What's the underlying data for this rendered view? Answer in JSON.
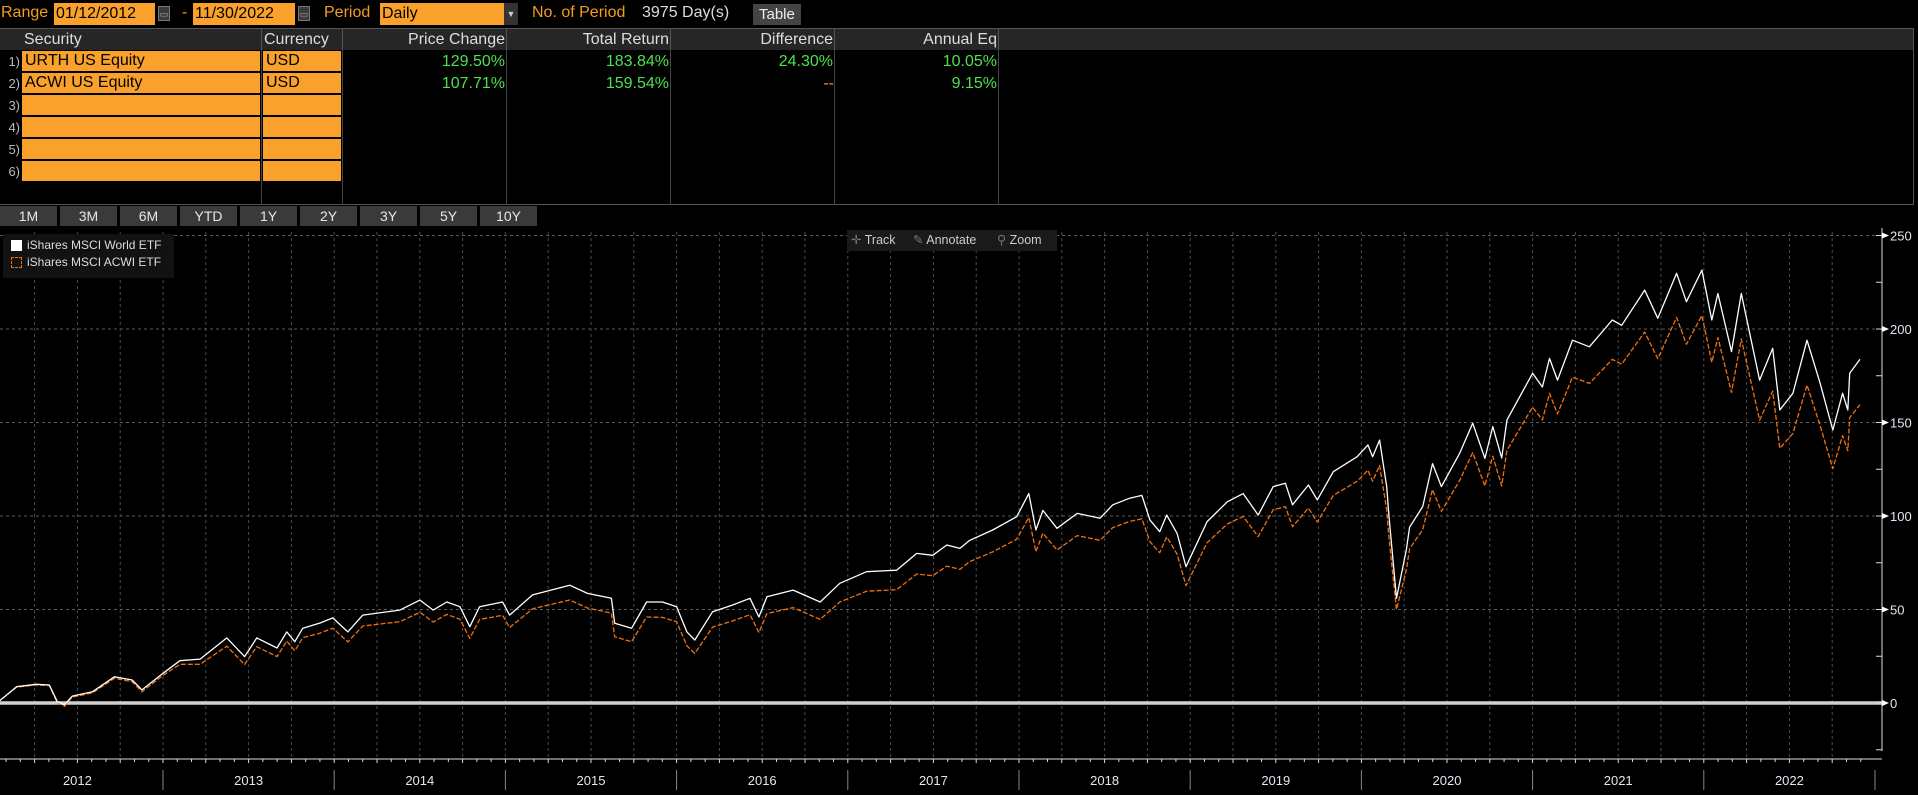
{
  "toolbar": {
    "range_label": "Range",
    "start_date": "01/12/2012",
    "dash": "-",
    "end_date": "11/30/2022",
    "period_label": "Period",
    "period_value": "Daily",
    "num_period_label": "No. of Period",
    "num_period_value": "3975 Day(s)",
    "table_button": "Table"
  },
  "table": {
    "headers": [
      "Security",
      "Currency",
      "Price Change",
      "Total Return",
      "Difference",
      "Annual Eq"
    ],
    "rows": [
      {
        "num": "1)",
        "security": "URTH US Equity",
        "currency": "USD",
        "price_change": "129.50%",
        "total_return": "183.84%",
        "difference": "24.30%",
        "annual_eq": "10.05%"
      },
      {
        "num": "2)",
        "security": "ACWI US Equity",
        "currency": "USD",
        "price_change": "107.71%",
        "total_return": "159.54%",
        "difference": "--",
        "annual_eq": "9.15%"
      },
      {
        "num": "3)",
        "security": "",
        "currency": ""
      },
      {
        "num": "4)",
        "security": "",
        "currency": ""
      },
      {
        "num": "5)",
        "security": "",
        "currency": ""
      },
      {
        "num": "6)",
        "security": "",
        "currency": ""
      }
    ]
  },
  "period_buttons": [
    "1M",
    "3M",
    "6M",
    "YTD",
    "1Y",
    "2Y",
    "3Y",
    "5Y",
    "10Y"
  ],
  "chart_tools": {
    "track": "Track",
    "annotate": "Annotate",
    "zoom": "Zoom",
    "track_icon": "crosshair-icon",
    "annotate_icon": "pencil-icon",
    "zoom_icon": "magnifier-icon"
  },
  "colors": {
    "accent": "#f9a12a",
    "positive": "#4fe04f",
    "series_1": "#ffffff",
    "series_2": "#f07010",
    "background": "#000000"
  },
  "chart_data": {
    "type": "line",
    "legend_placement": "top-left",
    "grid": true,
    "ylim": [
      -25,
      250
    ],
    "y_ticks": [
      0,
      50,
      100,
      150,
      200,
      250
    ],
    "x_ticks": [
      "2012",
      "2013",
      "2014",
      "2015",
      "2016",
      "2017",
      "2018",
      "2019",
      "2020",
      "2021",
      "2022"
    ],
    "x_range": [
      "2012-01-12",
      "2022-11-30"
    ],
    "baseline": 0,
    "dates": [
      "2012-01-12",
      "2012-02-23",
      "2012-04-05",
      "2012-05-03",
      "2012-05-20",
      "2012-06-04",
      "2012-06-21",
      "2012-08-03",
      "2012-09-19",
      "2012-10-27",
      "2012-11-17",
      "2013-01-01",
      "2013-02-06",
      "2013-03-21",
      "2013-05-17",
      "2013-06-24",
      "2013-07-20",
      "2013-09-01",
      "2013-09-22",
      "2013-10-09",
      "2013-10-26",
      "2013-12-02",
      "2013-12-29",
      "2014-01-30",
      "2014-03-03",
      "2014-05-21",
      "2014-07-03",
      "2014-07-31",
      "2014-08-29",
      "2014-09-26",
      "2014-10-17",
      "2014-11-07",
      "2014-12-26",
      "2015-01-10",
      "2015-02-28",
      "2015-05-18",
      "2015-06-25",
      "2015-08-15",
      "2015-08-22",
      "2015-09-27",
      "2015-10-29",
      "2015-12-02",
      "2016-01-01",
      "2016-01-23",
      "2016-02-09",
      "2016-03-18",
      "2016-04-30",
      "2016-06-06",
      "2016-06-25",
      "2016-07-12",
      "2016-09-06",
      "2016-11-03",
      "2016-12-15",
      "2017-02-10",
      "2017-04-15",
      "2017-05-28",
      "2017-07-01",
      "2017-07-31",
      "2017-08-28",
      "2017-09-18",
      "2017-11-06",
      "2017-12-27",
      "2018-01-22",
      "2018-02-06",
      "2018-02-21",
      "2018-03-23",
      "2018-05-05",
      "2018-06-23",
      "2018-07-20",
      "2018-08-25",
      "2018-09-20",
      "2018-10-07",
      "2018-10-28",
      "2018-11-12",
      "2018-12-04",
      "2018-12-23",
      "2019-02-06",
      "2019-03-21",
      "2019-04-24",
      "2019-05-26",
      "2019-06-27",
      "2019-07-23",
      "2019-08-07",
      "2019-09-10",
      "2019-09-29",
      "2019-11-02",
      "2019-12-23",
      "2020-01-15",
      "2020-01-25",
      "2020-02-09",
      "2020-02-24",
      "2020-02-29",
      "2020-03-16",
      "2020-04-06",
      "2020-04-13",
      "2020-05-11",
      "2020-06-01",
      "2020-06-20",
      "2020-07-29",
      "2020-08-26",
      "2020-09-21",
      "2020-10-08",
      "2020-10-27",
      "2020-11-07",
      "2021-01-01",
      "2021-01-22",
      "2021-02-06",
      "2021-02-23",
      "2021-03-27",
      "2021-05-02",
      "2021-06-20",
      "2021-07-10",
      "2021-08-28",
      "2021-09-25",
      "2021-11-04",
      "2021-11-25",
      "2021-12-28",
      "2022-01-18",
      "2022-01-31",
      "2022-03-01",
      "2022-03-22",
      "2022-04-30",
      "2022-05-28",
      "2022-06-12",
      "2022-07-10",
      "2022-08-09",
      "2022-09-06",
      "2022-10-03",
      "2022-10-24",
      "2022-11-04",
      "2022-11-08",
      "2022-11-30"
    ],
    "series": [
      {
        "name": "iShares MSCI World ETF",
        "color": "#ffffff",
        "style": "solid",
        "values": [
          0,
          8.7,
          10,
          9.6,
          0.7,
          -1,
          3.7,
          6,
          14,
          12.3,
          7,
          15.9,
          22.6,
          23.5,
          34.8,
          24.8,
          34.8,
          29.4,
          38,
          32.8,
          40,
          42.8,
          45.5,
          38,
          47,
          49.7,
          55,
          49.7,
          54,
          51.5,
          40.8,
          51.5,
          54,
          47,
          57.8,
          63,
          58.6,
          56,
          42.6,
          40,
          54,
          54,
          51.5,
          38,
          33.7,
          48.8,
          52.4,
          56,
          46,
          56.8,
          60.4,
          54,
          64,
          70.2,
          71,
          80,
          79,
          84.5,
          82.7,
          87,
          92.5,
          99.6,
          112,
          92.5,
          103,
          93.4,
          101.4,
          98.8,
          106,
          109.5,
          111,
          97.9,
          91.6,
          100.5,
          90.7,
          72.9,
          97,
          107.6,
          112,
          100.5,
          115.7,
          117.5,
          106,
          116.6,
          108.6,
          123.7,
          131.7,
          138,
          131.7,
          140.6,
          115.7,
          99.6,
          56,
          81.8,
          94,
          105,
          128,
          115.7,
          133.5,
          149.6,
          130.8,
          147.8,
          131,
          151.3,
          176.3,
          169,
          184.3,
          172.7,
          194,
          190.5,
          204.8,
          202,
          220.8,
          205.7,
          229.8,
          214.6,
          231.5,
          204.8,
          219,
          187.9,
          219,
          172.7,
          189.7,
          156.7,
          165.6,
          194,
          171,
          146,
          165.6,
          156.7,
          176.3,
          183.84
        ]
      },
      {
        "name": "iShares MSCI ACWI ETF",
        "color": "#f07010",
        "style": "dashed",
        "values": [
          0,
          8.5,
          9.7,
          9.3,
          0.3,
          -1.8,
          3.2,
          5.4,
          13.2,
          11.4,
          6,
          14.8,
          20.7,
          20.7,
          30.4,
          20.6,
          30.1,
          24.8,
          33.1,
          27.9,
          34.9,
          37.4,
          40,
          32.7,
          41.2,
          43.5,
          48.5,
          43.3,
          47.4,
          44.8,
          34.6,
          44.7,
          46.9,
          40.3,
          50.4,
          55.1,
          50.8,
          48.1,
          35.4,
          32.8,
          46,
          45.8,
          43.5,
          30.6,
          26.5,
          40.6,
          43.9,
          47.2,
          37.7,
          47.8,
          51,
          44.7,
          54,
          59.8,
          60.6,
          69,
          68.1,
          73.2,
          71.5,
          75.6,
          80.8,
          87.6,
          99.2,
          80.9,
          90.8,
          81.8,
          89.5,
          87,
          93.8,
          97.1,
          98.5,
          86.3,
          80.4,
          88.8,
          79.6,
          62.8,
          85.7,
          95.7,
          99.8,
          89,
          103.3,
          105,
          94.3,
          104.3,
          96.8,
          111,
          118.6,
          124.5,
          118.6,
          127,
          103.3,
          88.1,
          50,
          71,
          82.5,
          92.7,
          114.1,
          102.5,
          119,
          133.9,
          116.1,
          132,
          116.1,
          135.1,
          158.2,
          151.4,
          165.5,
          154.6,
          174.3,
          170.9,
          183.8,
          181.2,
          198.4,
          184.1,
          206.2,
          191.8,
          207.2,
          182.2,
          195.4,
          166.1,
          194.6,
          151.3,
          166.8,
          136.2,
          144.1,
          170,
          148.4,
          125.3,
          143,
          134.9,
          152.6,
          159.54
        ]
      }
    ]
  }
}
